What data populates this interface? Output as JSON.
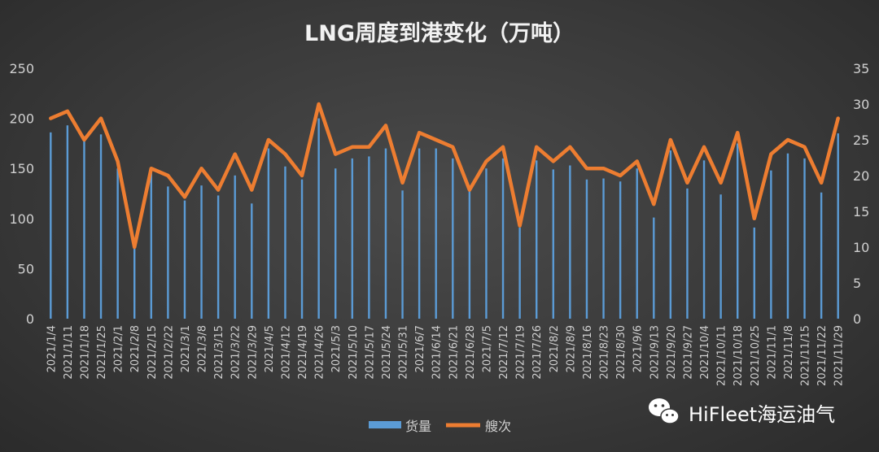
{
  "chart_data": {
    "type": "bar+line",
    "title": "LNG周度到港变化（万吨）",
    "categories": [
      "2021/1/4",
      "2021/1/11",
      "2021/1/18",
      "2021/1/25",
      "2021/2/1",
      "2021/2/8",
      "2021/2/15",
      "2021/2/22",
      "2021/3/1",
      "2021/3/8",
      "2021/3/15",
      "2021/3/22",
      "2021/3/29",
      "2021/4/5",
      "2021/4/12",
      "2021/4/19",
      "2021/4/26",
      "2021/5/3",
      "2021/5/10",
      "2021/5/17",
      "2021/5/24",
      "2021/5/31",
      "2021/6/7",
      "2021/6/14",
      "2021/6/21",
      "2021/6/28",
      "2021/7/5",
      "2021/7/12",
      "2021/7/19",
      "2021/7/26",
      "2021/8/2",
      "2021/8/9",
      "2021/8/16",
      "2021/8/23",
      "2021/8/30",
      "2021/9/6",
      "2021/9/13",
      "2021/9/20",
      "2021/9/27",
      "2021/10/4",
      "2021/10/11",
      "2021/10/18",
      "2021/10/25",
      "2021/11/1",
      "2021/11/8",
      "2021/11/15",
      "2021/11/22",
      "2021/11/29"
    ],
    "series": [
      {
        "name": "货量",
        "type": "bar",
        "axis": "left",
        "color": "#5b9bd5",
        "values": [
          186,
          193,
          182,
          184,
          150,
          70,
          148,
          132,
          118,
          133,
          123,
          143,
          115,
          170,
          152,
          139,
          200,
          150,
          160,
          162,
          170,
          128,
          170,
          170,
          160,
          132,
          150,
          160,
          91,
          158,
          149,
          153,
          139,
          140,
          137,
          150,
          101,
          168,
          130,
          158,
          124,
          175,
          91,
          148,
          165,
          160,
          126,
          185
        ]
      },
      {
        "name": "艘次",
        "type": "line",
        "axis": "right",
        "color": "#ed7d31",
        "values": [
          28,
          29,
          25,
          28,
          22,
          10,
          21,
          20,
          17,
          21,
          18,
          23,
          18,
          25,
          23,
          20,
          30,
          23,
          24,
          24,
          27,
          19,
          26,
          25,
          24,
          18,
          22,
          24,
          13,
          24,
          22,
          24,
          21,
          21,
          20,
          22,
          16,
          25,
          19,
          24,
          19,
          26,
          14,
          23,
          25,
          24,
          19,
          28
        ]
      }
    ],
    "y_left": {
      "min": 0,
      "max": 250,
      "ticks": [
        0,
        50,
        100,
        150,
        200,
        250
      ]
    },
    "y_right": {
      "min": 0,
      "max": 35,
      "ticks": [
        0,
        5,
        10,
        15,
        20,
        25,
        30,
        35
      ]
    },
    "legend": {
      "position": "bottom",
      "items": [
        "货量",
        "艘次"
      ]
    },
    "grid": false
  },
  "watermark": {
    "text": "HiFleet海运油气",
    "icon": "wechat-icon"
  },
  "colors": {
    "bar": "#5b9bd5",
    "line": "#ed7d31",
    "text": "#d0d0d0",
    "title": "#f2f2f2"
  }
}
